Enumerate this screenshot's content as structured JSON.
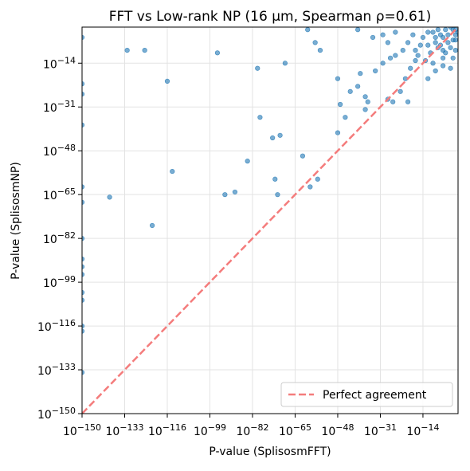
{
  "chart_data": {
    "type": "scatter",
    "title": "FFT vs Low-rank NP (16 µm, Spearman ρ=0.61)",
    "x_label": "P-value (SplisosmFFT)",
    "y_label": "P-value (SplisosmNP)",
    "log_x": true,
    "log_y": true,
    "grid": true,
    "legend_position": "lower right",
    "xlim": [
      1e-150,
      1
    ],
    "ylim": [
      1e-150,
      1
    ],
    "xticks": [
      {
        "value": 1e-150,
        "label": "10−150"
      },
      {
        "value": 1e-133,
        "label": "10−133"
      },
      {
        "value": 1e-116,
        "label": "10−116"
      },
      {
        "value": 1e-99,
        "label": "10−99"
      },
      {
        "value": 1e-82,
        "label": "10−82"
      },
      {
        "value": 1e-65,
        "label": "10−65"
      },
      {
        "value": 1e-48,
        "label": "10−48"
      },
      {
        "value": 1e-31,
        "label": "10−31"
      },
      {
        "value": 1e-14,
        "label": "10−14"
      }
    ],
    "yticks": [
      {
        "value": 1e-150,
        "label": "10−150"
      },
      {
        "value": 1e-133,
        "label": "10−133"
      },
      {
        "value": 1e-116,
        "label": "10−116"
      },
      {
        "value": 1e-99,
        "label": "10−99"
      },
      {
        "value": 1e-82,
        "label": "10−82"
      },
      {
        "value": 1e-65,
        "label": "10−65"
      },
      {
        "value": 1e-48,
        "label": "10−48"
      },
      {
        "value": 1e-31,
        "label": "10−31"
      },
      {
        "value": 1e-14,
        "label": "10−14"
      }
    ],
    "series": [
      {
        "color": "#1f77b4",
        "x": [
          1e-150,
          1e-150,
          1e-150,
          1e-150,
          1e-150,
          1e-150,
          1e-150,
          1e-150,
          1e-150,
          1e-150,
          1e-150,
          1e-150,
          1e-150,
          1e-150,
          1e-150,
          1e-139,
          1e-122,
          1e-132,
          1e-125,
          1e-116,
          1e-114,
          1e-96,
          1e-93,
          1e-89,
          1e-84,
          1e-80,
          1e-79,
          1e-74,
          1e-71,
          1e-73,
          1e-72,
          1e-69,
          1e-62,
          1e-59,
          1e-56,
          1e-60,
          1e-57,
          1e-55,
          1e-48,
          1e-48,
          1e-45,
          1e-47,
          1e-43,
          1e-40,
          1e-39,
          1e-40,
          1e-37,
          1e-36,
          1e-37,
          1e-33,
          1e-34,
          1e-30,
          1e-28,
          1e-26,
          1e-25,
          1e-27,
          1e-23,
          1e-20,
          1e-21,
          1e-19,
          1e-17,
          1e-12,
          1e-09,
          1e-06,
          1e-10,
          1e-08,
          1e-05,
          0.001,
          0.01,
          0.1,
          1e-06,
          0.0001,
          0.01,
          1e-07,
          1e-12,
          1e-14,
          1e-09,
          0.001,
          0.1,
          1e-05,
          1e-08,
          1e-11,
          1e-15,
          1e-18,
          1e-20,
          1e-16,
          1e-13,
          1e-06,
          0.01,
          0.0001,
          0.1,
          1,
          1e-07,
          1e-10,
          1e-22,
          1e-25,
          0.001,
          0.1,
          1e-09,
          1e-06,
          1e-12,
          1e-17,
          1e-28,
          1e-30
        ],
        "y": [
          0.0001,
          1e-22,
          1e-26,
          1e-38,
          1e-62,
          1e-68,
          1e-82,
          1e-90,
          1e-93,
          1e-96,
          1e-103,
          1e-106,
          1e-116,
          1e-118,
          1e-134,
          1e-66,
          1e-77,
          1e-09,
          1e-09,
          1e-21,
          1e-56,
          1e-10,
          1e-65,
          1e-64,
          1e-52,
          1e-16,
          1e-35,
          1e-43,
          1e-42,
          1e-59,
          1e-65,
          1e-14,
          1e-50,
          1e-62,
          1e-59,
          0.1,
          1e-06,
          1e-09,
          1e-20,
          1e-41,
          1e-35,
          1e-30,
          1e-25,
          0.1,
          1e-18,
          1e-23,
          1e-27,
          1e-29,
          1e-32,
          1e-17,
          0.0001,
          1e-14,
          1e-28,
          1e-29,
          1e-11,
          1e-12,
          1e-25,
          1e-29,
          1e-20,
          1e-16,
          1e-13,
          1e-20,
          1e-17,
          1e-15,
          0.01,
          0.1,
          0.1,
          1,
          0.1,
          0.001,
          0.0001,
          1e-06,
          1e-05,
          0.001,
          0.01,
          0.0001,
          1e-06,
          1e-08,
          1e-09,
          1e-10,
          1e-08,
          1e-10,
          1e-07,
          0.001,
          1e-06,
          1e-11,
          1e-13,
          1e-12,
          1e-12,
          0.001,
          0.1,
          0.01,
          1e-07,
          1e-14,
          1e-09,
          0.01,
          1e-16,
          1e-05,
          0.0001,
          1e-09,
          1e-07,
          1e-09,
          1e-06,
          0.001
        ]
      }
    ],
    "reference_line": {
      "name": "Perfect agreement",
      "color": "#f47c7c",
      "x": [
        1e-150,
        1
      ],
      "y": [
        1e-150,
        1
      ]
    }
  }
}
